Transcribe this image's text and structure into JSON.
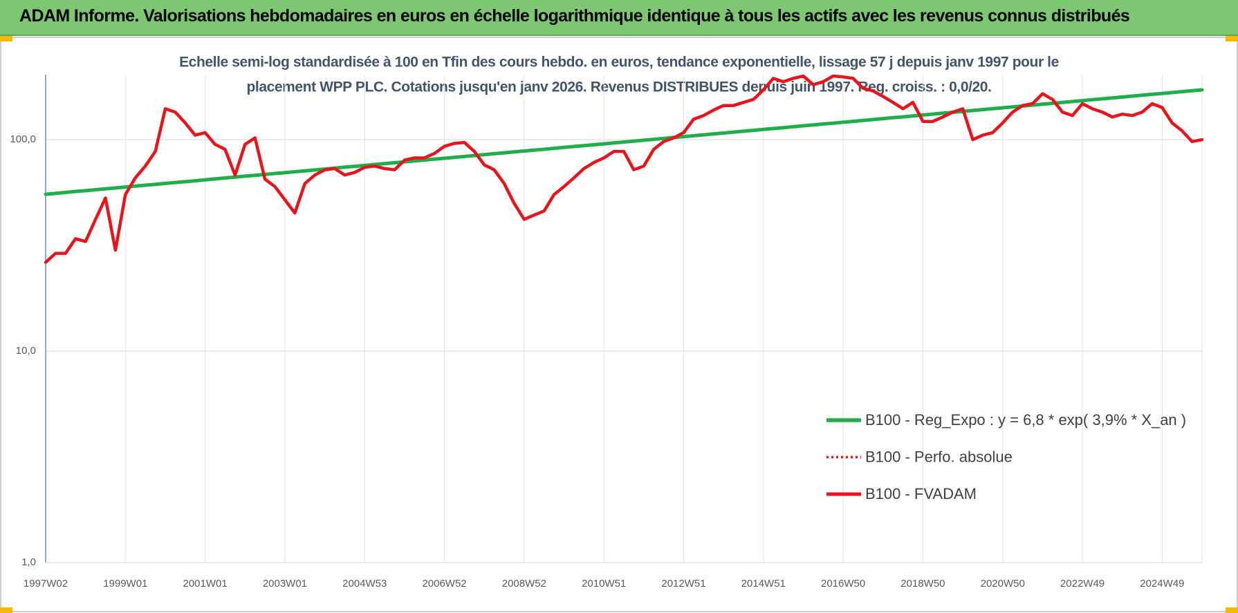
{
  "chart_data": {
    "type": "line",
    "title": "ADAM Informe. Valorisations hebdomadaires en euros en échelle logarithmique identique à tous les actifs avec les revenus connus distribués",
    "subtitle": [
      "Echelle semi-log standardisée à 100 en Tfin des cours hebdo. en euros, tendance exponentielle, lissage 57 j depuis janv 1997 pour le",
      "placement WPP PLC. Cotations jusqu'en janv 2026. Revenus DISTRIBUES depuis juin 1997. Reg. croiss. : 0,0/20."
    ],
    "log_y": true,
    "grid": true,
    "legend": "lower right",
    "ylim": [
      1,
      200
    ],
    "yticks": [
      {
        "value": 1,
        "label": "1,0"
      },
      {
        "value": 10,
        "label": "10,0"
      },
      {
        "value": 100,
        "label": "100,0"
      }
    ],
    "categories": [
      "1997W02",
      null,
      null,
      null,
      null,
      null,
      null,
      null,
      "1999W01",
      null,
      null,
      null,
      null,
      null,
      null,
      null,
      "2001W01",
      null,
      null,
      null,
      null,
      null,
      null,
      null,
      "2003W01",
      null,
      null,
      null,
      null,
      null,
      null,
      null,
      "2004W53",
      null,
      null,
      null,
      null,
      null,
      null,
      null,
      "2006W52",
      null,
      null,
      null,
      null,
      null,
      null,
      null,
      "2008W52",
      null,
      null,
      null,
      null,
      null,
      null,
      null,
      "2010W51",
      null,
      null,
      null,
      null,
      null,
      null,
      null,
      "2012W51",
      null,
      null,
      null,
      null,
      null,
      null,
      null,
      "2014W51",
      null,
      null,
      null,
      null,
      null,
      null,
      null,
      "2016W50",
      null,
      null,
      null,
      null,
      null,
      null,
      null,
      "2018W50",
      null,
      null,
      null,
      null,
      null,
      null,
      null,
      "2020W50",
      null,
      null,
      null,
      null,
      null,
      null,
      null,
      "2022W49",
      null,
      null,
      null,
      null,
      null,
      null,
      null,
      "2024W49",
      null,
      null,
      null,
      null
    ],
    "series": [
      {
        "name": "B100 - Reg_Expo : y = 6,8 * exp( 3,9% *  X_an )",
        "color": "#1fae4b",
        "width": 5,
        "dash": false,
        "values": [
          55.2,
          55.7,
          56.3,
          56.9,
          57.4,
          58.0,
          58.5,
          59.1,
          59.7,
          60.3,
          60.9,
          61.5,
          62.1,
          62.7,
          63.3,
          63.9,
          64.6,
          65.2,
          65.9,
          66.5,
          67.2,
          67.8,
          68.5,
          69.2,
          69.8,
          70.5,
          71.2,
          71.9,
          72.6,
          73.4,
          74.1,
          74.8,
          75.5,
          76.3,
          77.0,
          77.8,
          78.6,
          79.3,
          80.1,
          80.9,
          81.7,
          82.5,
          83.3,
          84.1,
          85.0,
          85.8,
          86.7,
          87.5,
          88.4,
          89.2,
          90.1,
          91.0,
          91.9,
          92.8,
          93.7,
          94.6,
          95.6,
          96.5,
          97.5,
          98.4,
          99.4,
          100.4,
          101.4,
          102.4,
          103.4,
          104.4,
          105.4,
          106.5,
          107.5,
          108.6,
          109.6,
          110.7,
          111.8,
          112.9,
          114.0,
          115.1,
          116.3,
          117.4,
          118.6,
          119.7,
          120.9,
          122.1,
          123.3,
          124.5,
          125.8,
          127.0,
          128.2,
          129.5,
          130.8,
          132.1,
          133.4,
          134.7,
          136.0,
          137.4,
          138.7,
          140.1,
          141.5,
          142.8,
          144.3,
          145.7,
          147.1,
          148.6,
          150.0,
          151.5,
          153.0,
          154.5,
          156.0,
          157.6,
          159.1,
          160.7,
          162.3,
          163.9,
          165.5,
          167.1,
          168.7,
          170.4,
          172.1
        ]
      },
      {
        "name": "B100 - Perfo. absolue",
        "color": "#e8141b",
        "width": 3,
        "dash": true,
        "values": [
          26.3,
          29,
          29,
          34,
          33,
          42,
          53,
          30,
          55,
          66,
          75,
          88,
          140,
          135,
          120,
          105,
          108,
          95,
          90,
          68,
          95,
          102,
          65,
          60,
          52,
          45,
          62,
          68,
          72,
          73,
          68,
          70,
          74,
          75,
          73,
          72,
          80,
          82,
          82,
          86,
          93,
          96,
          97,
          88,
          76,
          72,
          62,
          50,
          42,
          44,
          46,
          55,
          60,
          66,
          73,
          78,
          82,
          88,
          88,
          72,
          75,
          90,
          98,
          102,
          108,
          125,
          130,
          138,
          145,
          145,
          150,
          155,
          172,
          195,
          188,
          195,
          200,
          182,
          188,
          200,
          198,
          195,
          175,
          170,
          160,
          150,
          140,
          150,
          122,
          122,
          128,
          135,
          140,
          100,
          105,
          108,
          120,
          135,
          145,
          148,
          165,
          155,
          135,
          130,
          148,
          140,
          135,
          128,
          132,
          130,
          135,
          148,
          142,
          120,
          110,
          98,
          100
        ]
      },
      {
        "name": "B100 - FVADAM",
        "color": "#e8141b",
        "width": 4.5,
        "dash": false,
        "values": [
          26.3,
          29,
          29,
          34,
          33,
          42,
          53,
          30,
          55,
          66,
          75,
          88,
          140,
          135,
          120,
          105,
          108,
          95,
          90,
          68,
          95,
          102,
          65,
          60,
          52,
          45,
          62,
          68,
          72,
          73,
          68,
          70,
          74,
          75,
          73,
          72,
          80,
          82,
          82,
          86,
          93,
          96,
          97,
          88,
          76,
          72,
          62,
          50,
          42,
          44,
          46,
          55,
          60,
          66,
          73,
          78,
          82,
          88,
          88,
          72,
          75,
          90,
          98,
          102,
          108,
          125,
          130,
          138,
          145,
          145,
          150,
          155,
          172,
          195,
          188,
          195,
          200,
          182,
          188,
          200,
          198,
          195,
          175,
          170,
          160,
          150,
          140,
          150,
          122,
          122,
          128,
          135,
          140,
          100,
          105,
          108,
          120,
          135,
          145,
          148,
          165,
          155,
          135,
          130,
          148,
          140,
          135,
          128,
          132,
          130,
          135,
          148,
          142,
          120,
          110,
          98,
          100
        ]
      }
    ]
  }
}
